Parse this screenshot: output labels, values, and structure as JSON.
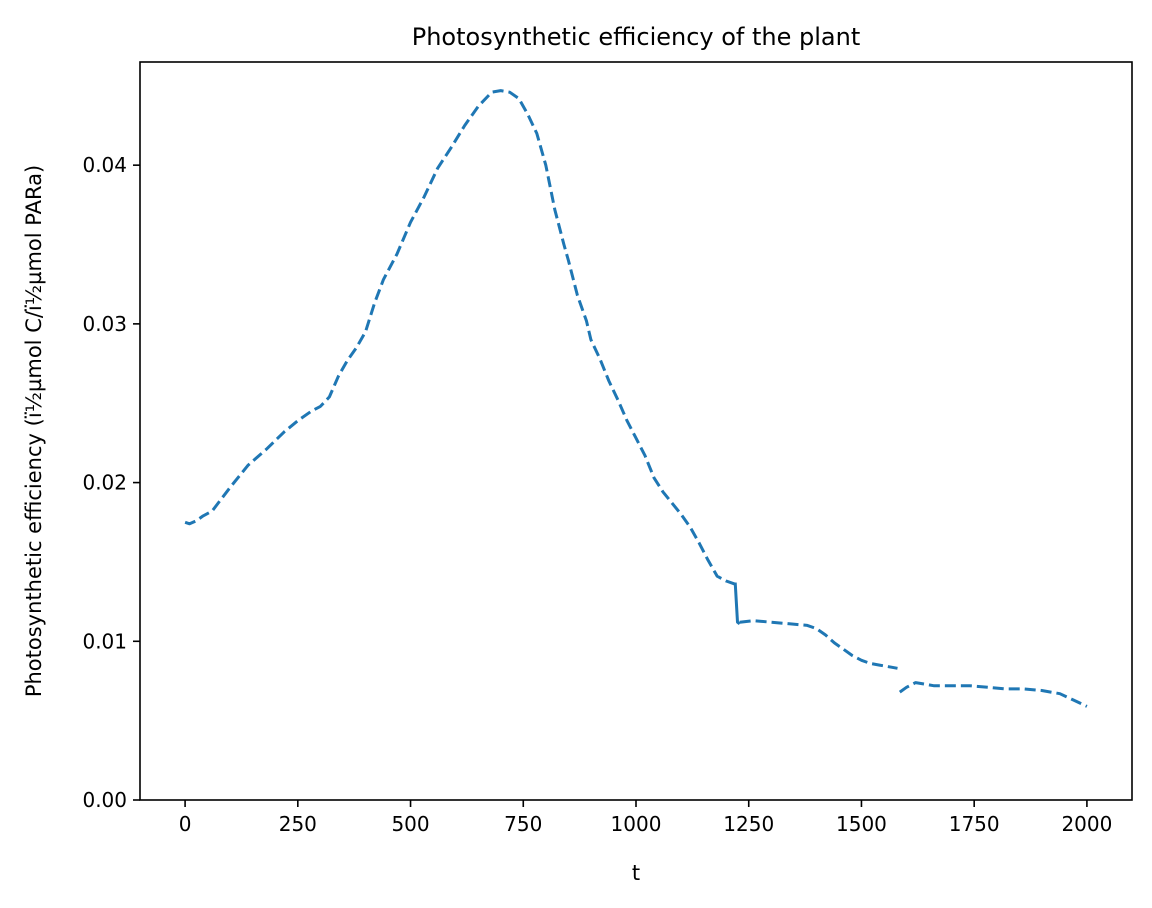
{
  "chart_data": {
    "type": "line",
    "title": "Photosynthetic efficiency of the plant",
    "xlabel": "t",
    "ylabel": "Photosynthetic efficiency (ï¹⁄₂µmol C/ï¹⁄₂µmol PARa)",
    "xlim": [
      -100,
      2100
    ],
    "ylim": [
      0.0,
      0.0465
    ],
    "x_ticks": [
      0,
      250,
      500,
      750,
      1000,
      1250,
      1500,
      1750,
      2000
    ],
    "x_tick_labels": [
      "0",
      "250",
      "500",
      "750",
      "1000",
      "1250",
      "1500",
      "1750",
      "2000"
    ],
    "y_ticks": [
      0.0,
      0.01,
      0.02,
      0.03,
      0.04
    ],
    "y_tick_labels": [
      "0.00",
      "0.01",
      "0.02",
      "0.03",
      "0.04"
    ],
    "grid": false,
    "series": [
      {
        "color": "#1f77b4",
        "segments": [
          {
            "style": "dashed",
            "x": [
              0,
              10,
              25,
              40,
              60,
              100,
              140,
              180,
              220,
              250,
              280,
              300,
              320,
              340,
              360,
              380,
              400,
              420,
              440,
              470,
              500,
              530,
              560,
              590,
              620,
              650,
              680,
              700,
              720,
              740,
              760,
              780,
              800,
              820,
              840,
              850,
              870,
              890,
              900,
              920,
              940,
              960,
              980,
              1000,
              1020,
              1040,
              1060,
              1080,
              1100,
              1120,
              1140,
              1160,
              1180,
              1200,
              1220
            ],
            "y": [
              0.0175,
              0.0174,
              0.0176,
              0.0179,
              0.0182,
              0.0197,
              0.0211,
              0.0221,
              0.0232,
              0.0239,
              0.0245,
              0.0248,
              0.0254,
              0.0267,
              0.0277,
              0.0285,
              0.0295,
              0.0313,
              0.0328,
              0.0344,
              0.0364,
              0.038,
              0.0398,
              0.0411,
              0.0425,
              0.0437,
              0.0446,
              0.0447,
              0.0446,
              0.0442,
              0.0432,
              0.042,
              0.04,
              0.0372,
              0.035,
              0.034,
              0.0318,
              0.0302,
              0.029,
              0.0278,
              0.0264,
              0.0252,
              0.0239,
              0.0228,
              0.0217,
              0.0203,
              0.0194,
              0.0187,
              0.018,
              0.0172,
              0.0162,
              0.0151,
              0.0141,
              0.0138,
              0.0136
            ]
          },
          {
            "style": "solid",
            "x": [
              1220,
              1225,
              1230
            ],
            "y": [
              0.0137,
              0.0112,
              0.0111
            ]
          },
          {
            "style": "dashed",
            "x": [
              1230,
              1260,
              1300,
              1340,
              1380,
              1400,
              1420,
              1440,
              1460,
              1480,
              1500,
              1520,
              1540,
              1560,
              1580
            ],
            "y": [
              0.0112,
              0.0113,
              0.0112,
              0.0111,
              0.011,
              0.0108,
              0.0104,
              0.0099,
              0.0095,
              0.0091,
              0.0088,
              0.0086,
              0.0085,
              0.0084,
              0.0083
            ]
          },
          {
            "style": "dashed",
            "x": [
              1585,
              1600,
              1620,
              1640,
              1660,
              1700,
              1740,
              1780,
              1820,
              1860,
              1900,
              1940,
              1970,
              2000
            ],
            "y": [
              0.0068,
              0.0071,
              0.0074,
              0.0073,
              0.0072,
              0.0072,
              0.0072,
              0.0071,
              0.007,
              0.007,
              0.0069,
              0.0067,
              0.0063,
              0.0059
            ]
          }
        ]
      }
    ]
  }
}
